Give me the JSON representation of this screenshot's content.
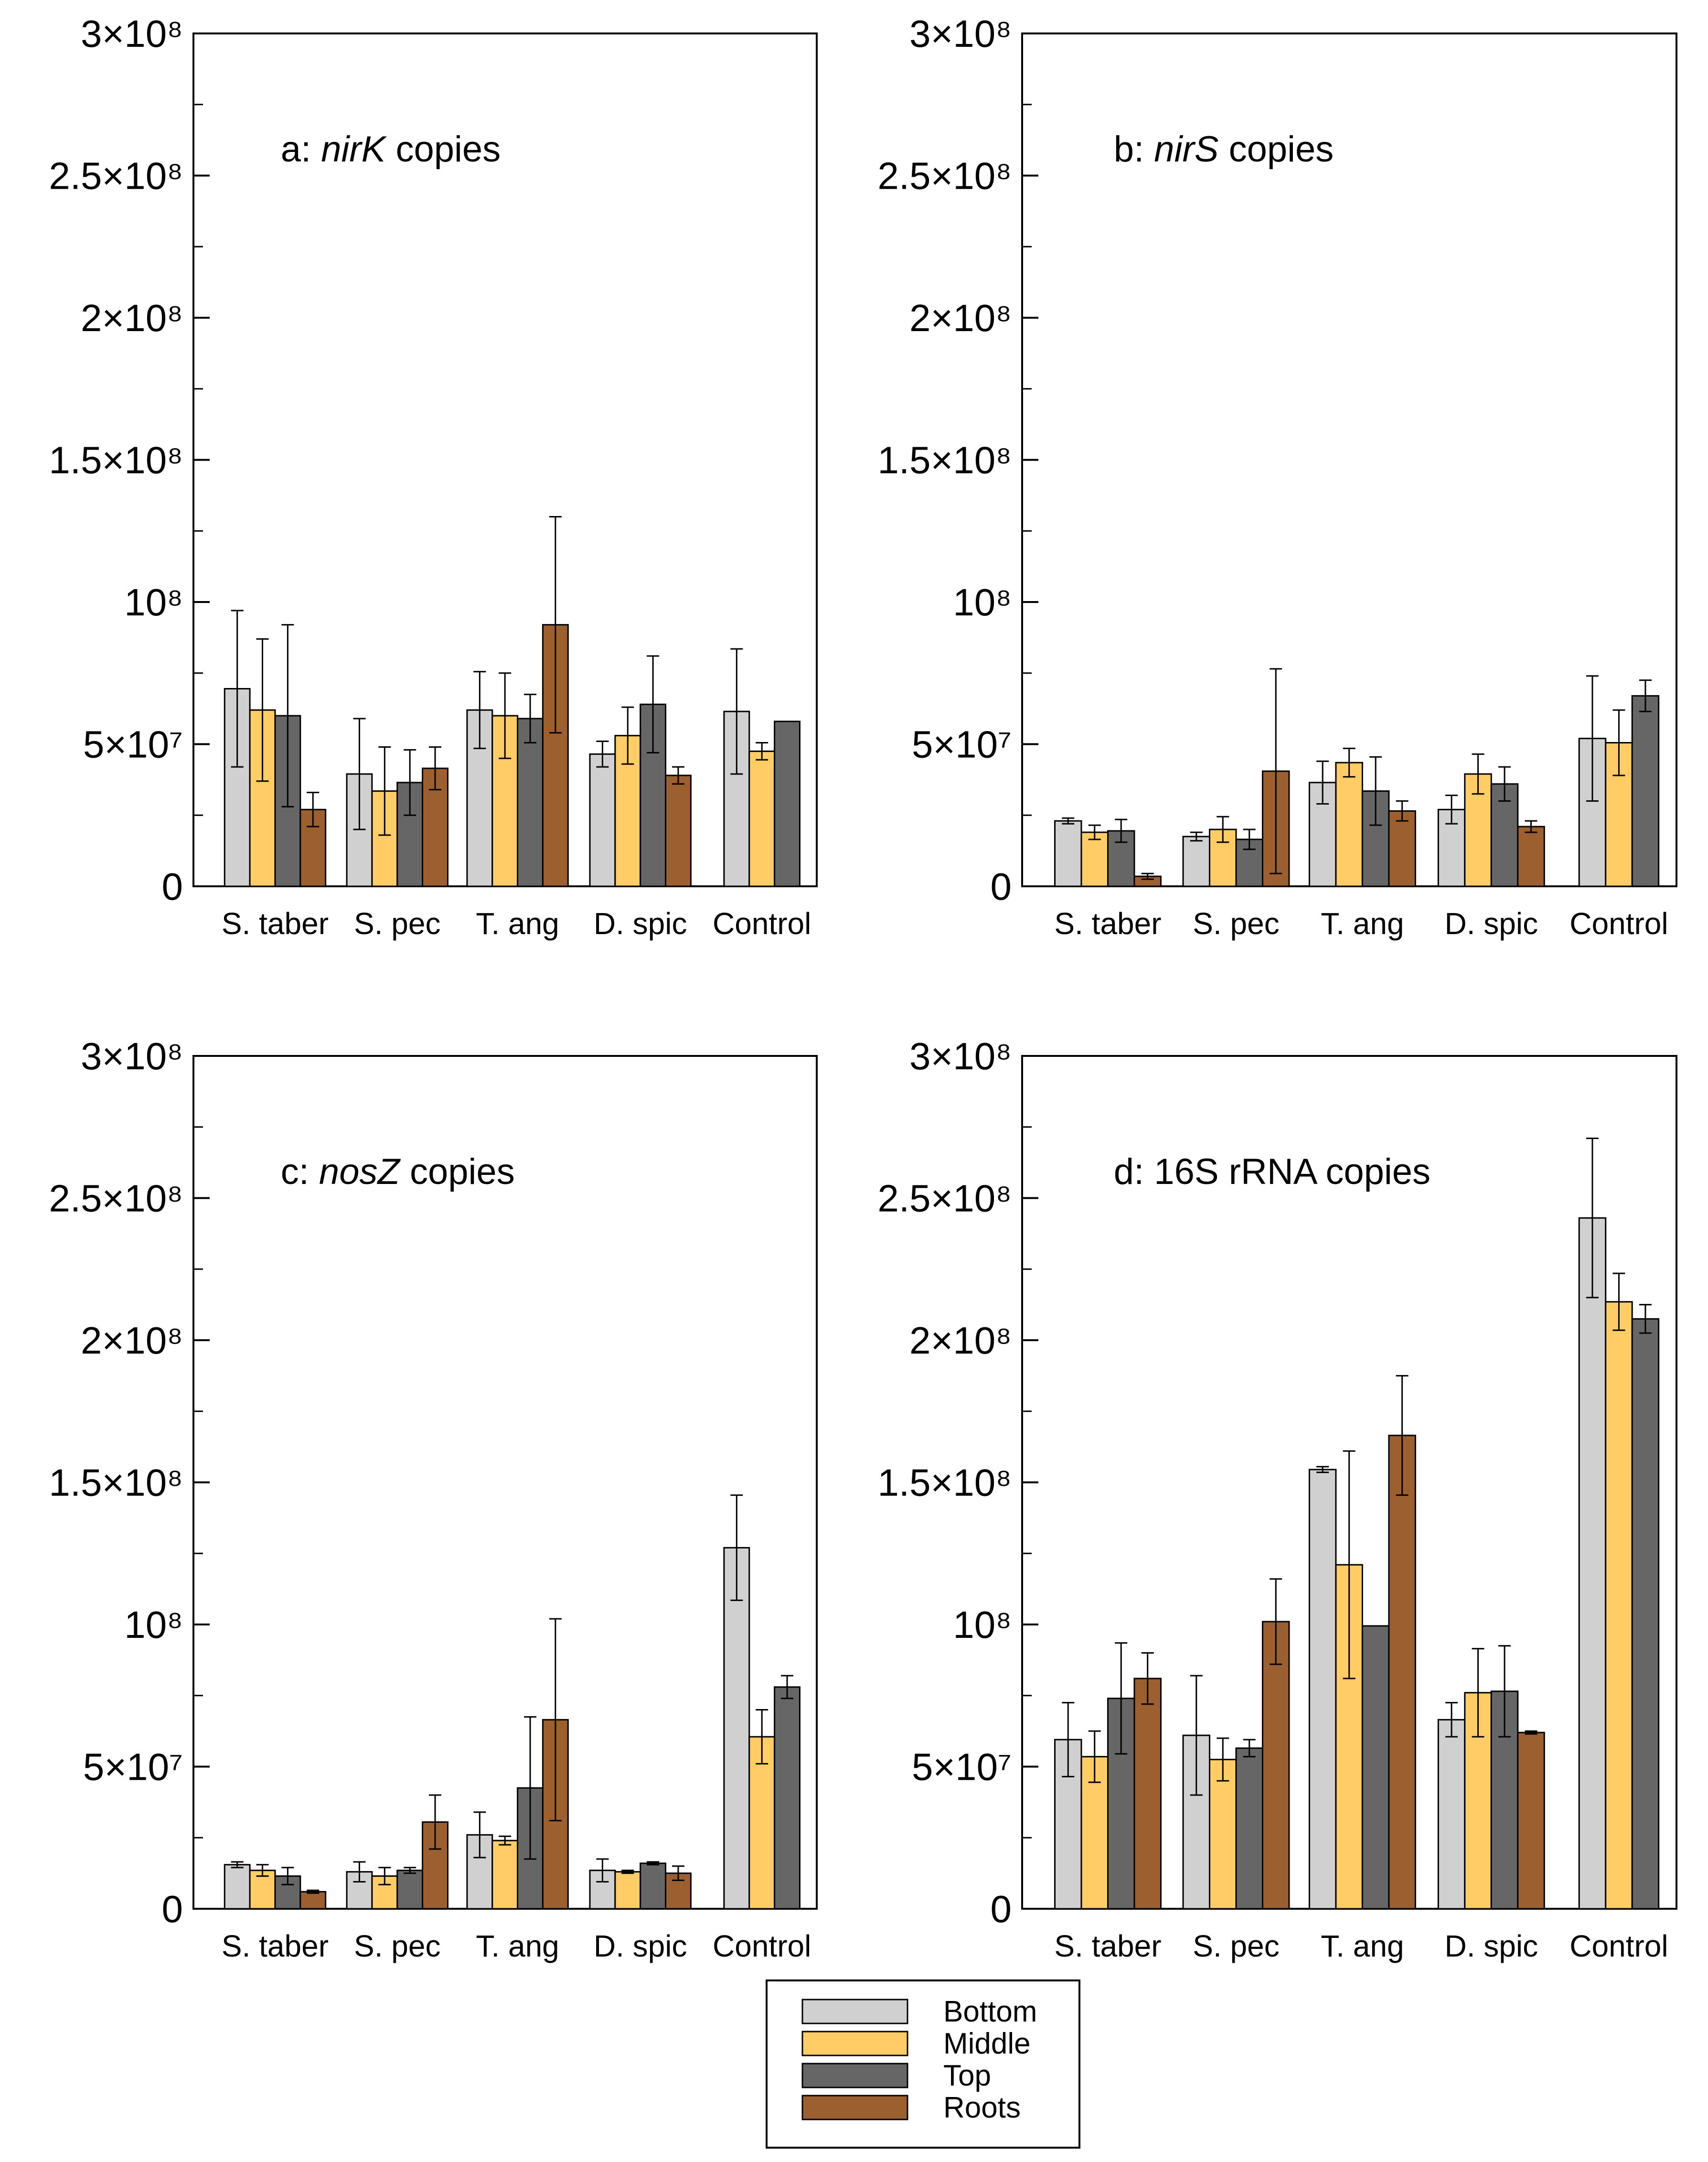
{
  "colors": {
    "Bottom": "#d0d0d0",
    "Middle": "#ffcc66",
    "Top": "#666666",
    "Roots": "#9c5f30",
    "frame": "#000000"
  },
  "legend": {
    "placement": "bottom-center",
    "entries": [
      "Bottom",
      "Middle",
      "Top",
      "Roots"
    ]
  },
  "chart_data": [
    {
      "type": "bar",
      "panel": "a",
      "title_prefix": "a: ",
      "title_italic": "nirK",
      "title_suffix": " copies",
      "categories": [
        "S. taber",
        "S. pec",
        "T. ang",
        "D. spic",
        "Control"
      ],
      "ylim": [
        0,
        300000000
      ],
      "ytick_labels": [
        "0",
        "5×10⁷",
        "10⁸",
        "1.5×10⁸",
        "2×10⁸",
        "2.5×10⁸",
        "3×10⁸"
      ],
      "series": [
        {
          "name": "Bottom",
          "values": [
            69500000,
            39500000,
            62000000,
            46500000,
            61500000
          ],
          "errors": [
            27500000,
            19500000,
            13500000,
            4500000,
            22000000
          ]
        },
        {
          "name": "Middle",
          "values": [
            62000000,
            33500000,
            60000000,
            53000000,
            47500000
          ],
          "errors": [
            25000000,
            15500000,
            15000000,
            10000000,
            3000000
          ]
        },
        {
          "name": "Top",
          "values": [
            60000000,
            36500000,
            59000000,
            64000000,
            58000000
          ],
          "errors": [
            32000000,
            11500000,
            8500000,
            17000000,
            0
          ]
        },
        {
          "name": "Roots",
          "values": [
            27000000,
            41500000,
            92000000,
            39000000,
            null
          ],
          "errors": [
            6000000,
            7500000,
            38000000,
            3000000,
            null
          ]
        }
      ]
    },
    {
      "type": "bar",
      "panel": "b",
      "title_prefix": "b: ",
      "title_italic": "nirS",
      "title_suffix": " copies",
      "categories": [
        "S. taber",
        "S. pec",
        "T. ang",
        "D. spic",
        "Control"
      ],
      "ylim": [
        0,
        300000000
      ],
      "ytick_labels": [
        "0",
        "5×10⁷",
        "10⁸",
        "1.5×10⁸",
        "2×10⁸",
        "2.5×10⁸",
        "3×10⁸"
      ],
      "series": [
        {
          "name": "Bottom",
          "values": [
            23000000,
            17500000,
            36500000,
            27000000,
            52000000
          ],
          "errors": [
            1000000,
            1500000,
            7500000,
            5000000,
            22000000
          ]
        },
        {
          "name": "Middle",
          "values": [
            19000000,
            20000000,
            43500000,
            39500000,
            50500000
          ],
          "errors": [
            2500000,
            4500000,
            5000000,
            7000000,
            11500000
          ]
        },
        {
          "name": "Top",
          "values": [
            19500000,
            16500000,
            33500000,
            36000000,
            67000000
          ],
          "errors": [
            4000000,
            3500000,
            12000000,
            6000000,
            5500000
          ]
        },
        {
          "name": "Roots",
          "values": [
            3500000,
            40500000,
            26500000,
            21000000,
            null
          ],
          "errors": [
            1000000,
            36000000,
            3500000,
            2000000,
            null
          ]
        }
      ]
    },
    {
      "type": "bar",
      "panel": "c",
      "title_prefix": "c: ",
      "title_italic": "nosZ",
      "title_suffix": " copies",
      "categories": [
        "S. taber",
        "S. pec",
        "T. ang",
        "D. spic",
        "Control"
      ],
      "ylim": [
        0,
        300000000
      ],
      "ytick_labels": [
        "0",
        "5×10⁷",
        "10⁸",
        "1.5×10⁸",
        "2×10⁸",
        "2.5×10⁸",
        "3×10⁸"
      ],
      "series": [
        {
          "name": "Bottom",
          "values": [
            15500000,
            13000000,
            26000000,
            13500000,
            127000000
          ],
          "errors": [
            1000000,
            3500000,
            8000000,
            4000000,
            18500000
          ]
        },
        {
          "name": "Middle",
          "values": [
            13500000,
            11500000,
            24000000,
            13000000,
            60500000
          ],
          "errors": [
            2000000,
            3000000,
            1500000,
            500000,
            9500000
          ]
        },
        {
          "name": "Top",
          "values": [
            11500000,
            13500000,
            42500000,
            16000000,
            78000000
          ],
          "errors": [
            3000000,
            1000000,
            25000000,
            500000,
            4000000
          ]
        },
        {
          "name": "Roots",
          "values": [
            6000000,
            30500000,
            66500000,
            12500000,
            null
          ],
          "errors": [
            500000,
            9500000,
            35500000,
            2500000,
            null
          ]
        }
      ]
    },
    {
      "type": "bar",
      "panel": "d",
      "title_prefix": "d: 16S rRNA copies",
      "title_italic": "",
      "title_suffix": "",
      "categories": [
        "S. taber",
        "S. pec",
        "T. ang",
        "D. spic",
        "Control"
      ],
      "ylim": [
        0,
        300000000
      ],
      "ytick_labels": [
        "0",
        "5×10⁷",
        "10⁸",
        "1.5×10⁸",
        "2×10⁸",
        "2.5×10⁸",
        "3×10⁸"
      ],
      "series": [
        {
          "name": "Bottom",
          "values": [
            59500000,
            61000000,
            154500000,
            66500000,
            243000000
          ],
          "errors": [
            13000000,
            21000000,
            1000000,
            6000000,
            28000000
          ]
        },
        {
          "name": "Middle",
          "values": [
            53500000,
            52500000,
            121000000,
            76000000,
            213500000
          ],
          "errors": [
            9000000,
            7500000,
            40000000,
            15500000,
            10000000
          ]
        },
        {
          "name": "Top",
          "values": [
            74000000,
            56500000,
            99500000,
            76500000,
            207500000
          ],
          "errors": [
            19500000,
            3000000,
            0,
            16000000,
            5000000
          ]
        },
        {
          "name": "Roots",
          "values": [
            81000000,
            101000000,
            166500000,
            62000000,
            null
          ],
          "errors": [
            9000000,
            15000000,
            21000000,
            500000,
            null
          ]
        }
      ]
    }
  ]
}
